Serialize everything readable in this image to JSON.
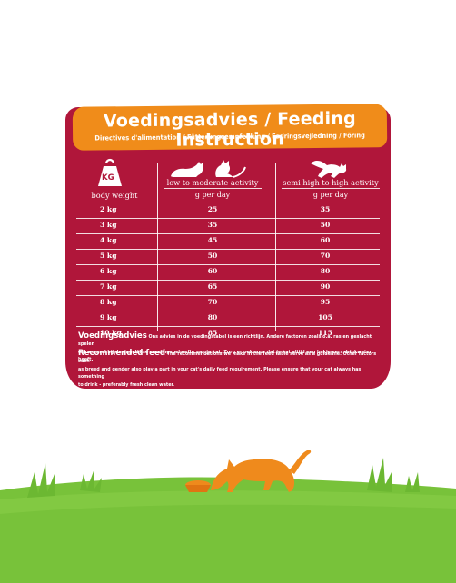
{
  "banner": {
    "title": "Voedingsadvies / Feeding Instruction",
    "subtitle": "Directives d'alimentation / Fütterungsempfehlung / Fodringsvejledning / Föring"
  },
  "icons": {
    "weight": "kg-weight-icon",
    "kg_label": "KG",
    "low_activity": "two-cats-sitting-icon",
    "high_activity": "cat-jumping-icon",
    "scene": "cat-eating-from-bowl-illustration"
  },
  "columns": {
    "weight_header": "body weight",
    "low_header": "low to moderate activity",
    "low_unit": "g per day",
    "high_header": "semi high to high activity",
    "high_unit": "g per day"
  },
  "rows": [
    {
      "weight": "2 kg",
      "low": "25",
      "high": "35"
    },
    {
      "weight": "3 kg",
      "low": "35",
      "high": "50"
    },
    {
      "weight": "4 kg",
      "low": "45",
      "high": "60"
    },
    {
      "weight": "5 kg",
      "low": "50",
      "high": "70"
    },
    {
      "weight": "6 kg",
      "low": "60",
      "high": "80"
    },
    {
      "weight": "7 kg",
      "low": "65",
      "high": "90"
    },
    {
      "weight": "8 kg",
      "low": "70",
      "high": "95"
    },
    {
      "weight": "9 kg",
      "low": "80",
      "high": "105"
    },
    {
      "weight": "10 kg",
      "low": "85",
      "high": "115"
    }
  ],
  "advice_nl": {
    "heading": "Voedingsadvies",
    "line1": "Ons advies in de voedingstabel is een richtlijn. Andere factoren zoals o.a. ras en geslacht spelen",
    "line2": "ook een rol bij de dagelijkse voedingsbehoefte van je kat. Zorg er ook voor dat je kat altijd een bakje vers drinkwater heeft."
  },
  "advice_en": {
    "heading": "Recommended feed",
    "line1": "The recommendations we make in the feed table serve as a guideline. Other factors such",
    "line2": "as breed and gender also play a part in your cat's daily feed requirement. Please ensure that your cat always has something",
    "line3": "to drink - preferably fresh clean water."
  },
  "colors": {
    "card": "#b0163a",
    "banner": "#f08c1a",
    "grass": "#78c23a",
    "cat": "#ef8a1c"
  }
}
